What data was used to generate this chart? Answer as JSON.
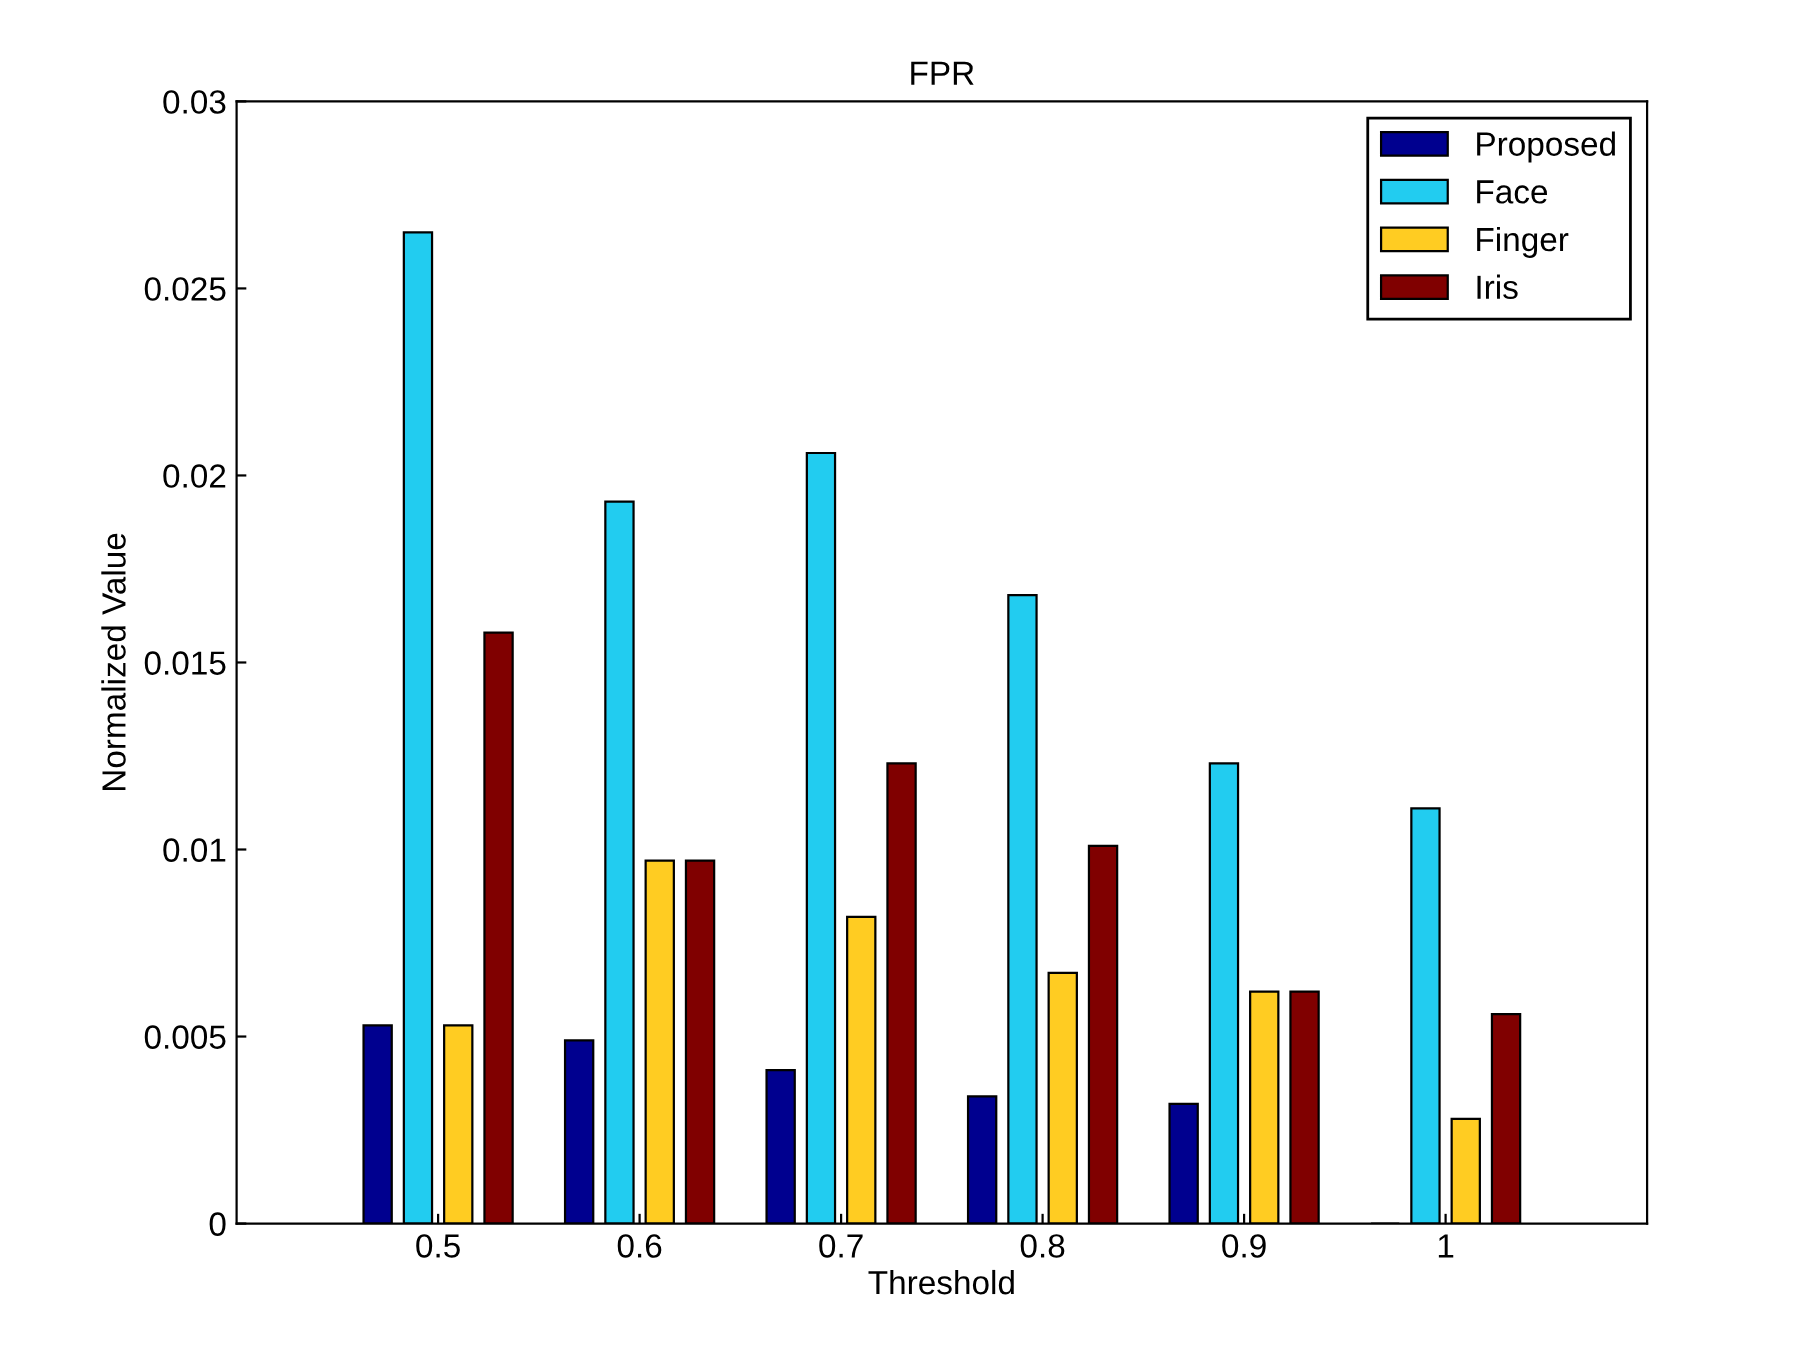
{
  "chart_data": {
    "type": "bar",
    "title": "FPR",
    "xlabel": "Threshold",
    "ylabel": "Normalized Value",
    "categories": [
      "0.5",
      "0.6",
      "0.7",
      "0.8",
      "0.9",
      "1"
    ],
    "series": [
      {
        "name": "Proposed",
        "color": "#00008f",
        "values": [
          0.0053,
          0.0049,
          0.0041,
          0.0034,
          0.0032,
          0
        ]
      },
      {
        "name": "Face",
        "color": "#22ccf0",
        "values": [
          0.0265,
          0.0193,
          0.0206,
          0.0168,
          0.0123,
          0.0111
        ]
      },
      {
        "name": "Finger",
        "color": "#ffcc22",
        "values": [
          0.0053,
          0.0097,
          0.0082,
          0.0067,
          0.0062,
          0.0028
        ]
      },
      {
        "name": "Iris",
        "color": "#800000",
        "values": [
          0.0158,
          0.0097,
          0.0123,
          0.0101,
          0.0062,
          0.0056
        ]
      }
    ],
    "ylim": [
      0,
      0.03
    ],
    "yticks": [
      0,
      0.005,
      0.01,
      0.015,
      0.02,
      0.025,
      0.03
    ],
    "grid": false,
    "legend": "top right"
  }
}
